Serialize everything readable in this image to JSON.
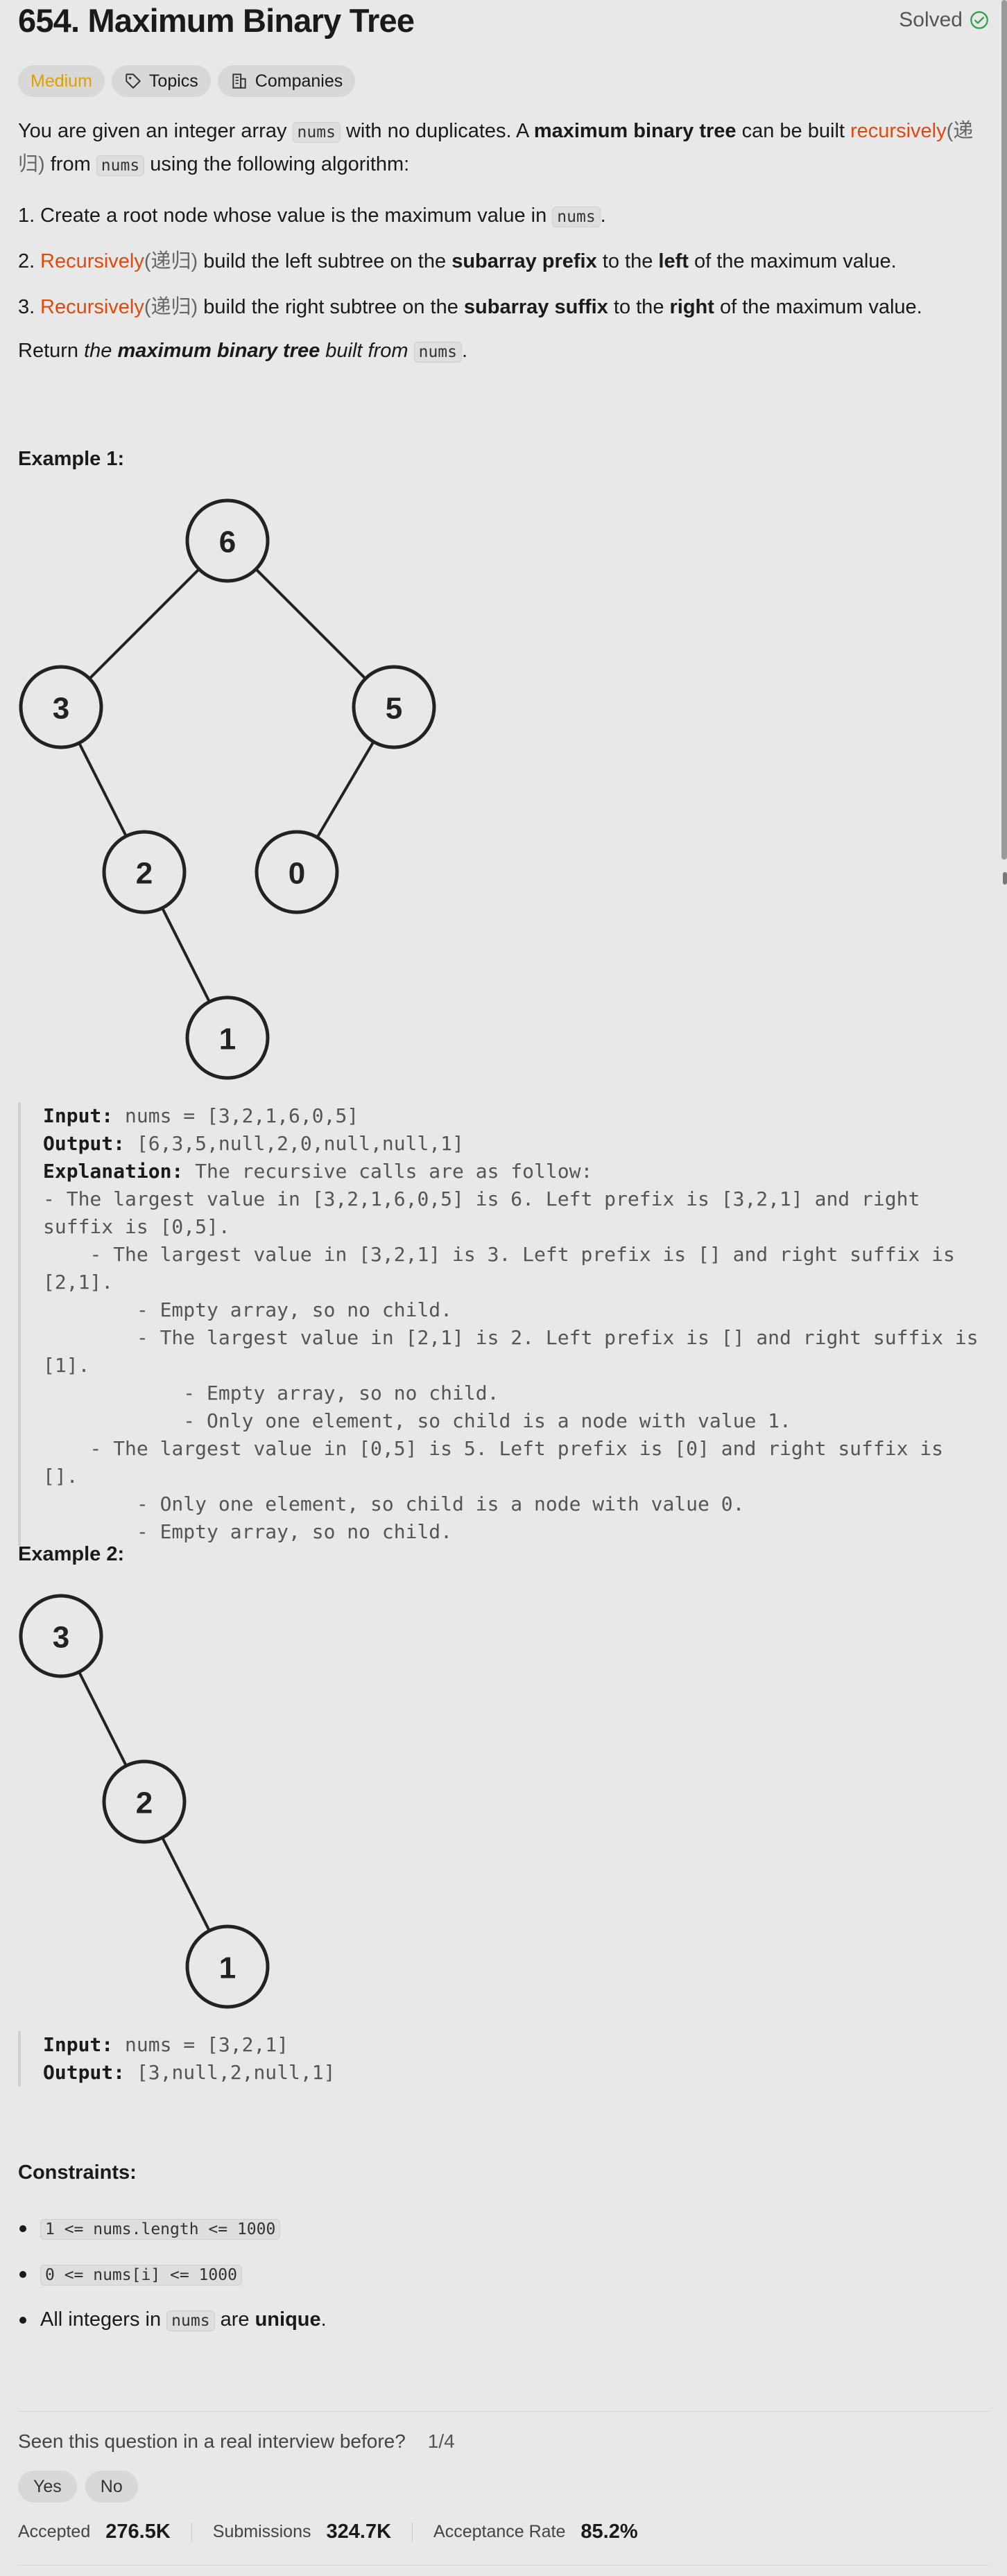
{
  "problem": {
    "title": "654. Maximum Binary Tree",
    "status": "Solved",
    "difficulty": "Medium",
    "topics_label": "Topics",
    "companies_label": "Companies"
  },
  "description": {
    "p1_a": "You are given an integer array ",
    "p1_code": "nums",
    "p1_b": " with no duplicates. A ",
    "p1_bold": "maximum binary tree",
    "p1_c": " can be built ",
    "p1_link": "recursively",
    "p1_zh": "(递归)",
    "p1_d": " from ",
    "p1_code2": "nums",
    "p1_e": " using the following algorithm:",
    "steps": [
      {
        "num": "1.",
        "a": "Create a root node whose value is the maximum value in ",
        "code": "nums",
        "b": "."
      },
      {
        "num": "2.",
        "link": "Recursively",
        "zh": "(递归)",
        "a": " build the left subtree on the ",
        "bold1": "subarray prefix",
        "b": " to the ",
        "bold2": "left",
        "c": " of the maximum value."
      },
      {
        "num": "3.",
        "link": "Recursively",
        "zh": "(递归)",
        "a": " build the right subtree on the ",
        "bold1": "subarray suffix",
        "b": " to the ",
        "bold2": "right",
        "c": " of the maximum value."
      }
    ],
    "ret_a": "Return ",
    "ret_i1": "the ",
    "ret_bold": "maximum binary tree",
    "ret_i2": " built from ",
    "ret_code": "nums",
    "ret_b": "."
  },
  "example1": {
    "heading": "Example 1:",
    "tree_nodes": [
      "6",
      "3",
      "5",
      "2",
      "0",
      "1"
    ],
    "input_label": "Input:",
    "input": " nums = [3,2,1,6,0,5]",
    "output_label": "Output:",
    "output": " [6,3,5,null,2,0,null,null,1]",
    "explanation_label": "Explanation:",
    "explanation": " The recursive calls are as follow:\n- The largest value in [3,2,1,6,0,5] is 6. Left prefix is [3,2,1] and right suffix is [0,5].\n    - The largest value in [3,2,1] is 3. Left prefix is [] and right suffix is [2,1].\n        - Empty array, so no child.\n        - The largest value in [2,1] is 2. Left prefix is [] and right suffix is [1].\n            - Empty array, so no child.\n            - Only one element, so child is a node with value 1.\n    - The largest value in [0,5] is 5. Left prefix is [0] and right suffix is [].\n        - Only one element, so child is a node with value 0.\n        - Empty array, so no child."
  },
  "example2": {
    "heading": "Example 2:",
    "tree_nodes": [
      "3",
      "2",
      "1"
    ],
    "input_label": "Input:",
    "input": " nums = [3,2,1]",
    "output_label": "Output:",
    "output": " [3,null,2,null,1]"
  },
  "constraints": {
    "heading": "Constraints:",
    "items": [
      {
        "code": "1 <= nums.length <= 1000"
      },
      {
        "code": "0 <= nums[i] <= 1000"
      },
      {
        "a": "All integers in ",
        "code": "nums",
        "b": " are ",
        "bold": "unique",
        "c": "."
      }
    ]
  },
  "feedback": {
    "question": "Seen this question in a real interview before?",
    "page": "1/4",
    "yes": "Yes",
    "no": "No"
  },
  "stats": {
    "accepted_label": "Accepted",
    "accepted": "276.5K",
    "submissions_label": "Submissions",
    "submissions": "324.7K",
    "rate_label": "Acceptance Rate",
    "rate": "85.2%"
  },
  "colors": {
    "accent": "#e04a0e",
    "medium": "#e0a000",
    "solved": "#2ea44f",
    "background": "#e8e8e8"
  }
}
